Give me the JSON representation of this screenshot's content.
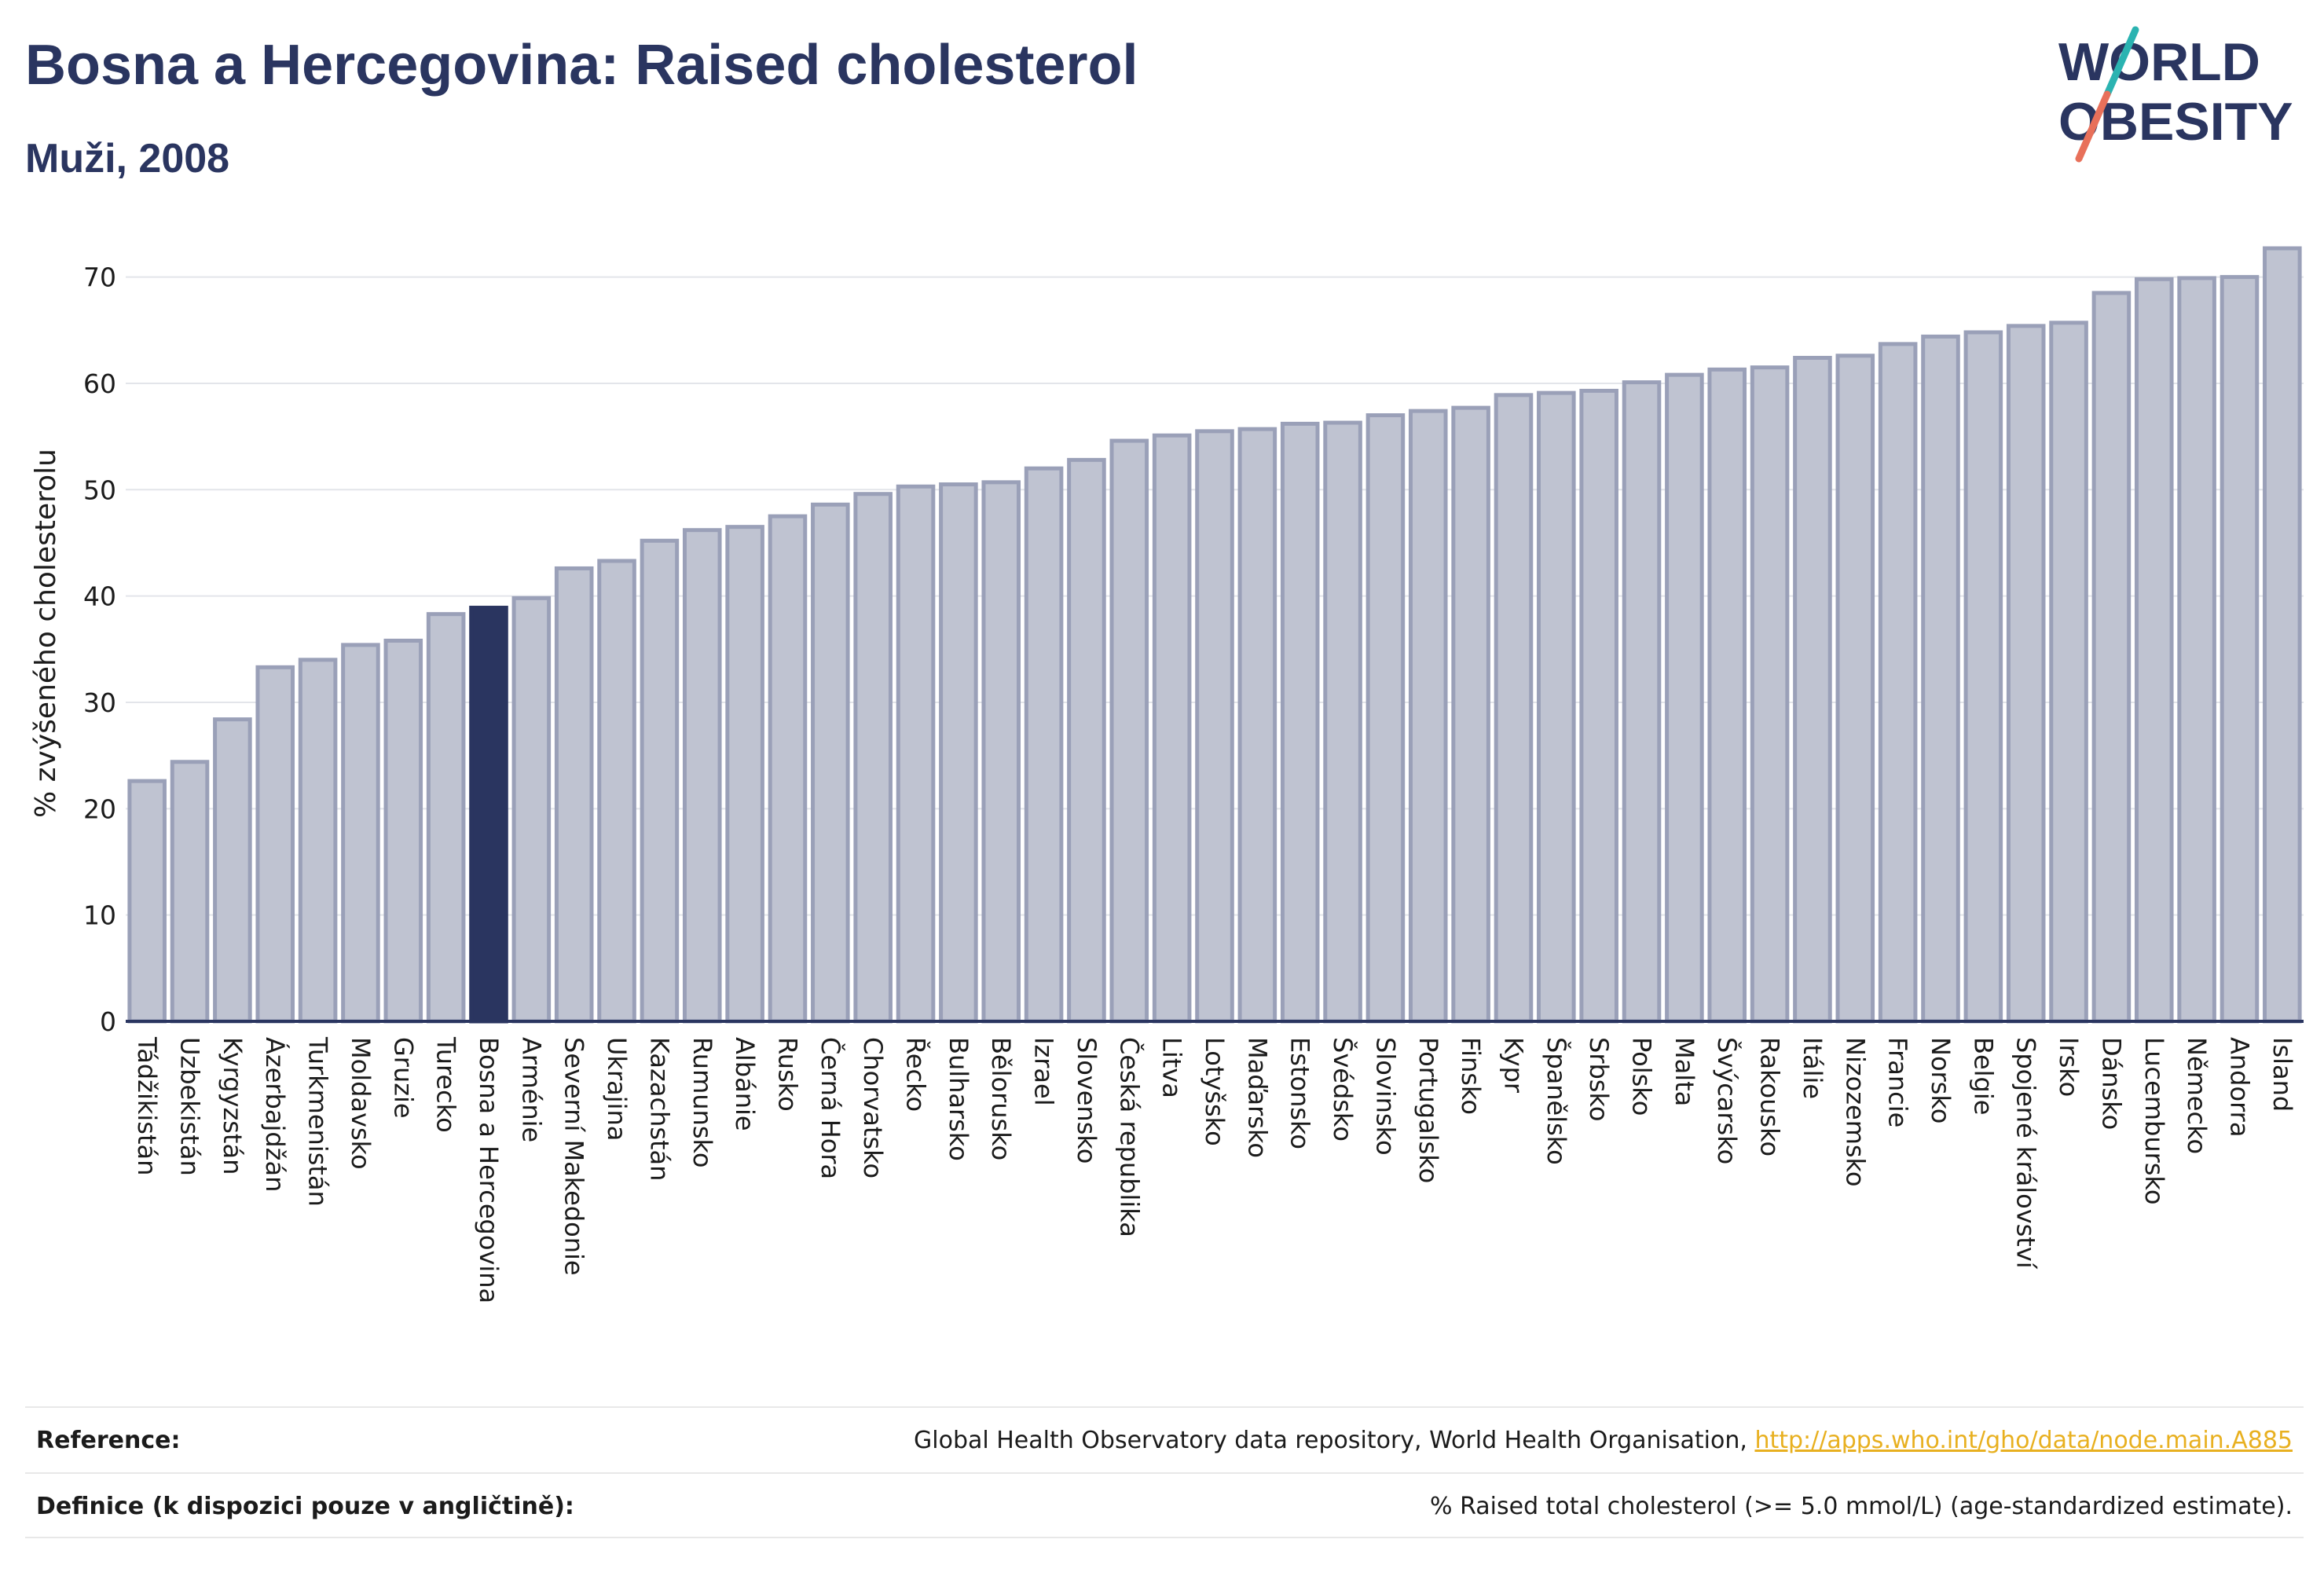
{
  "header": {
    "title": "Bosna a Hercegovina: Raised cholesterol",
    "subtitle": "Muži, 2008"
  },
  "logo": {
    "line1": "WORLD",
    "line2": "OBESITY",
    "colors": {
      "text": "#2a3560",
      "slash_teal": "#2bb3b1",
      "slash_coral": "#e8705a"
    }
  },
  "chart_data": {
    "type": "bar",
    "ylabel": "% zvýšeného cholesterolu",
    "ylim": [
      0,
      73
    ],
    "yticks": [
      0,
      10,
      20,
      30,
      40,
      50,
      60,
      70
    ],
    "grid": true,
    "highlight": "Bosna a Hercegovina",
    "colors": {
      "bar": "#bfc3d1",
      "bar_border": "#9aa0b8",
      "highlight": "#2a3560",
      "grid": "#e3e5ea",
      "axis": "#2a3560"
    },
    "categories": [
      "Tádžikistán",
      "Uzbekistán",
      "Kyrgyzstán",
      "Ázerbajdžán",
      "Turkmenistán",
      "Moldavsko",
      "Gruzie",
      "Turecko",
      "Bosna a Hercegovina",
      "Arménie",
      "Severní Makedonie",
      "Ukrajina",
      "Kazachstán",
      "Rumunsko",
      "Albánie",
      "Rusko",
      "Černá Hora",
      "Chorvatsko",
      "Řecko",
      "Bulharsko",
      "Bělorusko",
      "Izrael",
      "Slovensko",
      "Česká republika",
      "Litva",
      "Lotyšsko",
      "Maďarsko",
      "Estonsko",
      "Švédsko",
      "Slovinsko",
      "Portugalsko",
      "Finsko",
      "Kypr",
      "Španělsko",
      "Srbsko",
      "Polsko",
      "Malta",
      "Švýcarsko",
      "Rakousko",
      "Itálie",
      "Nizozemsko",
      "Francie",
      "Norsko",
      "Belgie",
      "Spojené království",
      "Irsko",
      "Dánsko",
      "Lucembursko",
      "Německo",
      "Andorra",
      "Island"
    ],
    "values": [
      22.6,
      24.4,
      28.4,
      33.3,
      34.0,
      35.4,
      35.8,
      38.3,
      38.9,
      39.8,
      42.6,
      43.3,
      45.2,
      46.2,
      46.5,
      47.5,
      48.6,
      49.6,
      50.3,
      50.5,
      50.7,
      52.0,
      52.8,
      54.6,
      55.1,
      55.5,
      55.7,
      56.2,
      56.3,
      57.0,
      57.4,
      57.7,
      58.9,
      59.1,
      59.3,
      60.1,
      60.8,
      61.3,
      61.5,
      62.4,
      62.6,
      63.7,
      64.4,
      64.8,
      65.4,
      65.7,
      68.5,
      69.8,
      69.9,
      70.0,
      72.7
    ]
  },
  "footer": {
    "reference_label": "Reference:",
    "reference_text": "Global Health Observatory data repository, World Health Organisation, ",
    "reference_link": "http://apps.who.int/gho/data/node.main.A885",
    "definition_label": "Definice (k dispozici pouze v angličtině):",
    "definition_text": "% Raised total cholesterol (>= 5.0 mmol/L) (age-standardized estimate)."
  }
}
